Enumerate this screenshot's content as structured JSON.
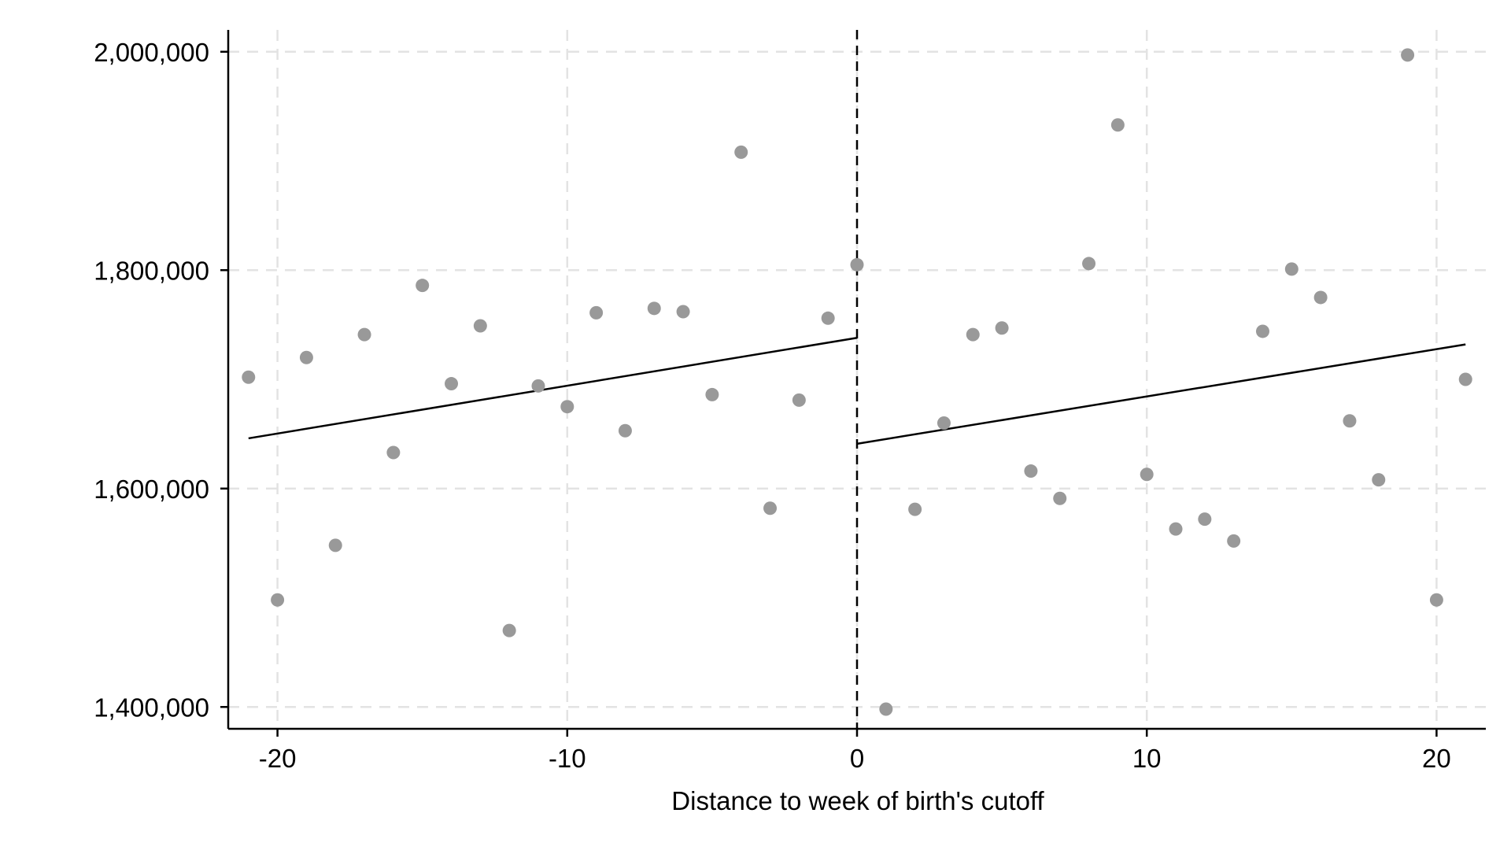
{
  "chart_data": {
    "type": "scatter",
    "title": "",
    "xlabel": "Distance to week of birth's cutoff",
    "ylabel": "",
    "xlim": [
      -21.7,
      21.7
    ],
    "ylim": [
      1380000,
      2020000
    ],
    "x_ticks": [
      -20,
      -10,
      0,
      10,
      20
    ],
    "x_tick_labels": [
      "-20",
      "-10",
      "0",
      "10",
      "20"
    ],
    "y_ticks": [
      1400000,
      1600000,
      1800000,
      2000000
    ],
    "y_tick_labels": [
      "1,400,000",
      "1,600,000",
      "1,800,000",
      "2,000,000"
    ],
    "grid": true,
    "cutoff_line_x": 0,
    "colors": {
      "points": "#999999",
      "fit_line": "#000000",
      "grid": "#e3e3e3",
      "axis": "#000000",
      "cutoff": "#000000"
    },
    "series": [
      {
        "values": [
          {
            "x": -21,
            "y": 1702000
          },
          {
            "x": -20,
            "y": 1498000
          },
          {
            "x": -19,
            "y": 1720000
          },
          {
            "x": -18,
            "y": 1548000
          },
          {
            "x": -17,
            "y": 1741000
          },
          {
            "x": -16,
            "y": 1633000
          },
          {
            "x": -15,
            "y": 1786000
          },
          {
            "x": -14,
            "y": 1696000
          },
          {
            "x": -13,
            "y": 1749000
          },
          {
            "x": -12,
            "y": 1470000
          },
          {
            "x": -11,
            "y": 1694000
          },
          {
            "x": -10,
            "y": 1675000
          },
          {
            "x": -9,
            "y": 1761000
          },
          {
            "x": -8,
            "y": 1653000
          },
          {
            "x": -7,
            "y": 1765000
          },
          {
            "x": -6,
            "y": 1762000
          },
          {
            "x": -5,
            "y": 1686000
          },
          {
            "x": -4,
            "y": 1908000
          },
          {
            "x": -3,
            "y": 1582000
          },
          {
            "x": -2,
            "y": 1681000
          },
          {
            "x": -1,
            "y": 1756000
          },
          {
            "x": 0,
            "y": 1805000
          },
          {
            "x": 1,
            "y": 1398000
          },
          {
            "x": 2,
            "y": 1581000
          },
          {
            "x": 3,
            "y": 1660000
          },
          {
            "x": 4,
            "y": 1741000
          },
          {
            "x": 5,
            "y": 1747000
          },
          {
            "x": 6,
            "y": 1616000
          },
          {
            "x": 7,
            "y": 1591000
          },
          {
            "x": 8,
            "y": 1806000
          },
          {
            "x": 9,
            "y": 1933000
          },
          {
            "x": 10,
            "y": 1613000
          },
          {
            "x": 11,
            "y": 1563000
          },
          {
            "x": 12,
            "y": 1572000
          },
          {
            "x": 13,
            "y": 1552000
          },
          {
            "x": 14,
            "y": 1744000
          },
          {
            "x": 15,
            "y": 1801000
          },
          {
            "x": 16,
            "y": 1775000
          },
          {
            "x": 17,
            "y": 1662000
          },
          {
            "x": 18,
            "y": 1608000
          },
          {
            "x": 19,
            "y": 1997000
          },
          {
            "x": 20,
            "y": 1498000
          },
          {
            "x": 21,
            "y": 1700000
          }
        ]
      }
    ],
    "fit_lines": [
      {
        "x": [
          -21,
          0
        ],
        "y": [
          1646000,
          1738000
        ]
      },
      {
        "x": [
          0,
          21
        ],
        "y": [
          1641000,
          1732000
        ]
      }
    ]
  }
}
